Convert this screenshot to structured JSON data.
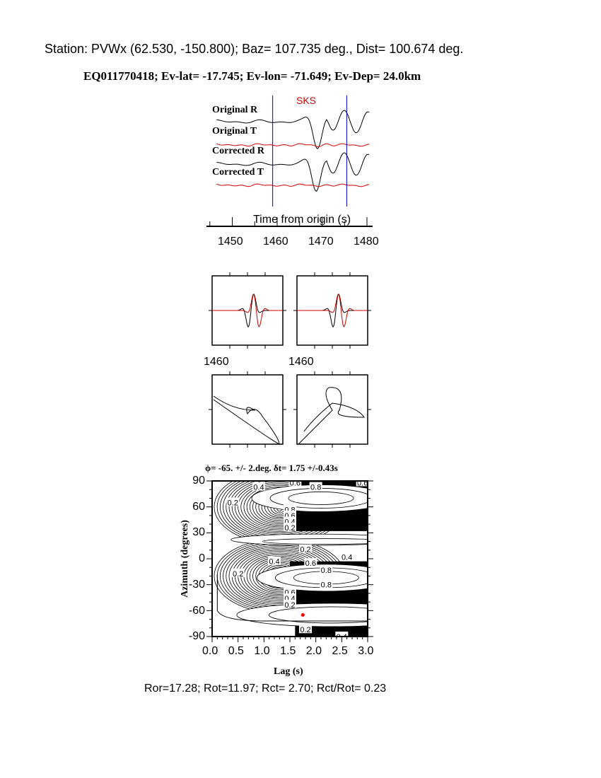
{
  "header": {
    "station_line": "Station: PVWx (62.530, -150.800); Baz=  107.735 deg., Dist=  100.674 deg.",
    "event_line": "EQ011770418; Ev-lat= -17.745; Ev-lon= -71.649; Ev-Dep= 24.0km"
  },
  "colors": {
    "radial": "#000000",
    "transverse": "#d00000",
    "window": "#0000c0",
    "phase": "#d00000",
    "best_fit": "#ff0000"
  },
  "chart_data": [
    {
      "type": "line",
      "title": "",
      "phase_label": "SKS",
      "traces": [
        "Original R",
        "Original T",
        "Corrected R",
        "Corrected T"
      ],
      "xlabel": "Time from origin (s)",
      "xticks": [
        "1450",
        "1460",
        "1470",
        "1480"
      ],
      "xlim": [
        1445,
        1481
      ],
      "window": [
        1459,
        1475.5
      ]
    },
    {
      "type": "line",
      "panels": [
        "original R/T window",
        "corrected R/T window"
      ],
      "tick_label_left": "1460",
      "tick_label_right": "1460"
    },
    {
      "type": "heatmap",
      "title": "ϕ= -65. +/- 2.deg. δt= 1.75 +/-0.43s",
      "xlabel": "Lag (s)",
      "ylabel": "Azimuth (degrees)",
      "xlim": [
        0,
        3
      ],
      "ylim": [
        -90,
        90
      ],
      "xticks": [
        "0.0",
        "0.5",
        "1.0",
        "1.5",
        "2.0",
        "2.5",
        "3.0"
      ],
      "yticks": [
        "90",
        "60",
        "30",
        "0",
        "-30",
        "-60",
        "-90"
      ],
      "contour_labels": [
        {
          "text": "0.4",
          "lag": 0.9,
          "az": 83
        },
        {
          "text": "0.6",
          "lag": 1.6,
          "az": 88
        },
        {
          "text": "0.8",
          "lag": 2.0,
          "az": 83
        },
        {
          "text": "0.6",
          "lag": 2.9,
          "az": 88
        },
        {
          "text": "0.2",
          "lag": 0.4,
          "az": 65
        },
        {
          "text": "0.8",
          "lag": 1.5,
          "az": 57
        },
        {
          "text": "0.6",
          "lag": 1.5,
          "az": 50
        },
        {
          "text": "0.4",
          "lag": 1.5,
          "az": 43
        },
        {
          "text": "0.2",
          "lag": 1.5,
          "az": 36
        },
        {
          "text": "0.2",
          "lag": 1.8,
          "az": 11
        },
        {
          "text": "0.4",
          "lag": 2.6,
          "az": 2
        },
        {
          "text": "0.4",
          "lag": 1.2,
          "az": -3
        },
        {
          "text": "0.6",
          "lag": 1.9,
          "az": -5
        },
        {
          "text": "0.8",
          "lag": 2.2,
          "az": -13
        },
        {
          "text": "0.2",
          "lag": 0.5,
          "az": -17
        },
        {
          "text": "0.8",
          "lag": 2.2,
          "az": -30
        },
        {
          "text": "0.6",
          "lag": 1.5,
          "az": -39
        },
        {
          "text": "0.4",
          "lag": 1.5,
          "az": -46
        },
        {
          "text": "0.2",
          "lag": 1.5,
          "az": -53
        },
        {
          "text": "0.2",
          "lag": 1.8,
          "az": -82
        },
        {
          "text": "0.4",
          "lag": 2.5,
          "az": -90
        }
      ],
      "best_fit": {
        "lag": 1.75,
        "az": -65
      }
    }
  ],
  "footer": {
    "ratios": "Ror=17.28; Rot=11.97; Rct= 2.70; Rct/Rot= 0.23"
  }
}
